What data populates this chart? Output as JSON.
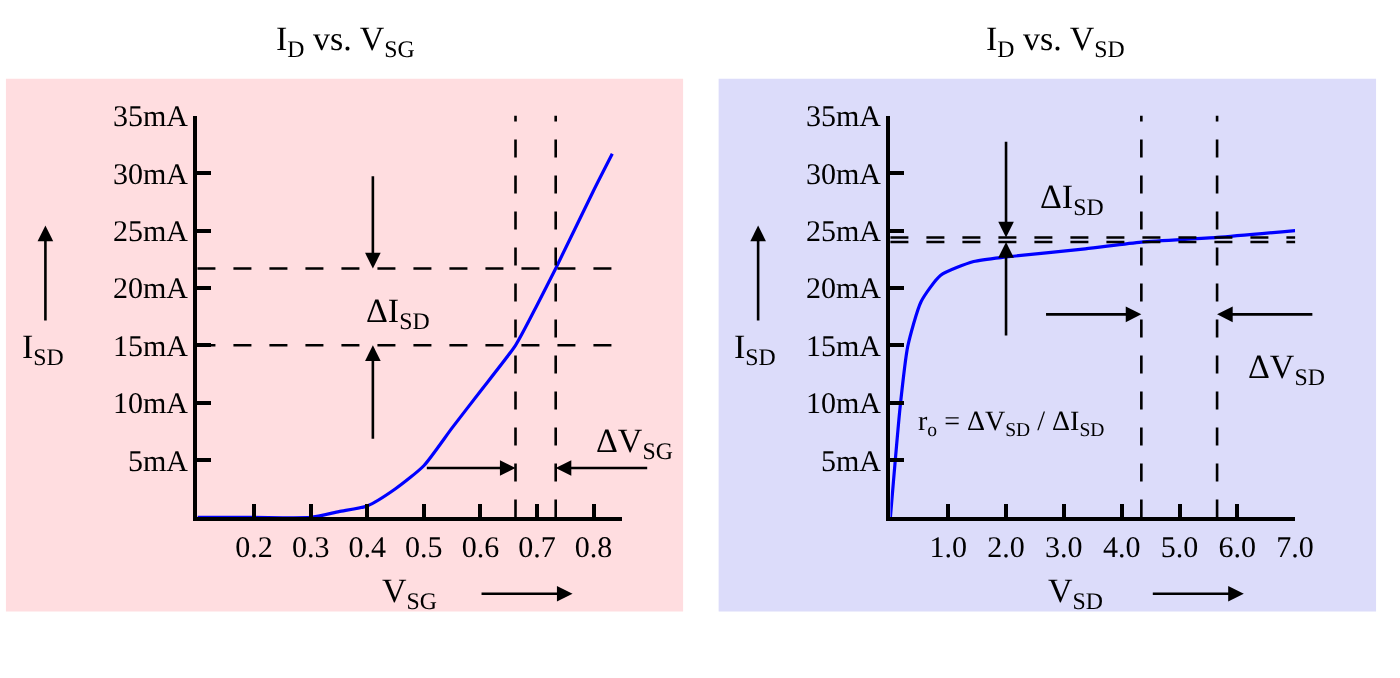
{
  "chart_data": [
    {
      "type": "line",
      "title": "I$_{D}$ vs. V$_{SG}$",
      "xlabel": "V$_{SG}$",
      "ylabel": "I$_{SD}$",
      "x": [
        0.1,
        0.2,
        0.3,
        0.35,
        0.4,
        0.45,
        0.5,
        0.55,
        0.6,
        0.662,
        0.7,
        0.733,
        0.8,
        0.833
      ],
      "series": [
        {
          "color": "#0000ff",
          "values": [
            0,
            0,
            0,
            0.5,
            1,
            2.5,
            4.5,
            7.8,
            11,
            15,
            18.5,
            21.7,
            28.5,
            31.7
          ]
        }
      ],
      "xlim": [
        0.1,
        0.85
      ],
      "xticks": [
        0.2,
        0.3,
        0.4,
        0.5,
        0.6,
        0.7,
        0.8
      ],
      "ylim": [
        0,
        35
      ],
      "yticks": [
        {
          "value": 5,
          "label": "5mA"
        },
        {
          "value": 10,
          "label": "10mA"
        },
        {
          "value": 15,
          "label": "15mA"
        },
        {
          "value": 20,
          "label": "20mA"
        },
        {
          "value": 25,
          "label": "25mA"
        },
        {
          "value": 30,
          "label": "30mA"
        },
        {
          "value": 35,
          "label": "35mA"
        }
      ],
      "ref_lines": [
        {
          "axis": "y",
          "value": 15,
          "line_style": "dashed",
          "color": "#000000"
        },
        {
          "axis": "y",
          "value": 21.7,
          "line_style": "dashed",
          "color": "#000000"
        },
        {
          "axis": "x",
          "value": 0.662,
          "line_style": "dashed",
          "color": "#000000"
        },
        {
          "axis": "x",
          "value": 0.733,
          "line_style": "dashed",
          "color": "#000000"
        }
      ],
      "annotations": [
        "ΔI$_{SD}$",
        "ΔV$_{SG}$"
      ],
      "grid": false,
      "marker": "none",
      "line_style": "solid"
    },
    {
      "type": "line",
      "title": "I$_{D}$ vs. V$_{SD}$",
      "xlabel": "V$_{SD}$",
      "ylabel": "I$_{SD}$",
      "x": [
        0,
        0.17,
        0.3,
        0.53,
        0.87,
        1.44,
        2.0,
        3.37,
        4.34,
        5.65,
        7.0
      ],
      "series": [
        {
          "color": "#0000ff",
          "values": [
            0,
            9.7,
            14.9,
            18.8,
            21.1,
            22.3,
            22.7,
            23.4,
            24.0,
            24.4,
            25.0
          ]
        }
      ],
      "xlim": [
        0,
        7
      ],
      "xticks": [
        {
          "value": 1,
          "label": "1.0"
        },
        {
          "value": 2,
          "label": "2.0"
        },
        {
          "value": 3,
          "label": "3.0"
        },
        {
          "value": 4,
          "label": "4.0"
        },
        {
          "value": 5,
          "label": "5.0"
        },
        {
          "value": 6,
          "label": "6.0"
        },
        {
          "value": 7,
          "label": "7.0"
        }
      ],
      "ylim": [
        0,
        35
      ],
      "yticks": [
        {
          "value": 5,
          "label": "5mA"
        },
        {
          "value": 10,
          "label": "10mA"
        },
        {
          "value": 15,
          "label": "15mA"
        },
        {
          "value": 20,
          "label": "20mA"
        },
        {
          "value": 25,
          "label": "25mA"
        },
        {
          "value": 30,
          "label": "30mA"
        },
        {
          "value": 35,
          "label": "35mA"
        }
      ],
      "ref_lines": [
        {
          "axis": "y",
          "value": 24.0,
          "line_style": "dashed",
          "color": "#000000"
        },
        {
          "axis": "y",
          "value": 24.4,
          "line_style": "dashed",
          "color": "#000000"
        },
        {
          "axis": "x",
          "value": 4.34,
          "line_style": "dashed",
          "color": "#000000"
        },
        {
          "axis": "x",
          "value": 5.65,
          "line_style": "dashed",
          "color": "#000000"
        }
      ],
      "annotations": [
        "ΔI$_{SD}$",
        "ΔV$_{SD}$",
        "r$_{o}$ = ΔV$_{SD}$ / ΔI$_{SD}$"
      ],
      "grid": false,
      "marker": "none",
      "line_style": "solid"
    }
  ]
}
